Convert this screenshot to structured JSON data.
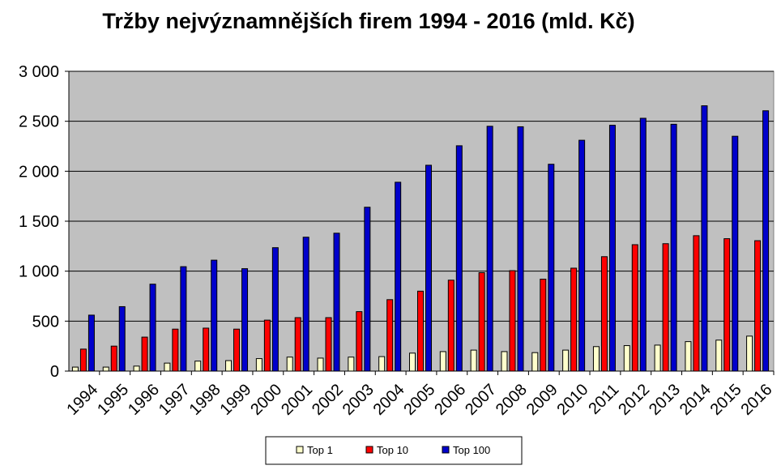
{
  "chart_data": {
    "type": "bar",
    "title": "Tržby nejvýznamnějších firem 1994 - 2016 (mld. Kč)",
    "xlabel": "",
    "ylabel": "",
    "ylim": [
      0,
      3000
    ],
    "yticks": [
      0,
      500,
      1000,
      1500,
      2000,
      2500,
      3000
    ],
    "ytick_labels": [
      "0",
      "500",
      "1 000",
      "1 500",
      "2 000",
      "2 500",
      "3 000"
    ],
    "grid": true,
    "legend_position": "bottom",
    "categories": [
      "1994",
      "1995",
      "1996",
      "1997",
      "1998",
      "1999",
      "2000",
      "2001",
      "2002",
      "2003",
      "2004",
      "2005",
      "2006",
      "2007",
      "2008",
      "2009",
      "2010",
      "2011",
      "2012",
      "2013",
      "2014",
      "2015",
      "2016"
    ],
    "series": [
      {
        "name": "Top 1",
        "color": "#ffffcc",
        "values": [
          40,
          40,
          50,
          80,
          100,
          105,
          125,
          140,
          130,
          140,
          145,
          180,
          195,
          210,
          195,
          185,
          210,
          245,
          255,
          260,
          295,
          310,
          350
        ]
      },
      {
        "name": "Top 10",
        "color": "#ff0000",
        "values": [
          220,
          250,
          340,
          420,
          430,
          420,
          510,
          535,
          535,
          595,
          715,
          800,
          910,
          985,
          1005,
          920,
          1030,
          1145,
          1265,
          1275,
          1355,
          1325,
          1305
        ]
      },
      {
        "name": "Top 100",
        "color": "#0000cc",
        "values": [
          560,
          645,
          870,
          1045,
          1110,
          1025,
          1235,
          1340,
          1380,
          1640,
          1890,
          2060,
          2255,
          2450,
          2445,
          2070,
          2310,
          2460,
          2530,
          2470,
          2655,
          2350,
          2605
        ]
      }
    ]
  }
}
